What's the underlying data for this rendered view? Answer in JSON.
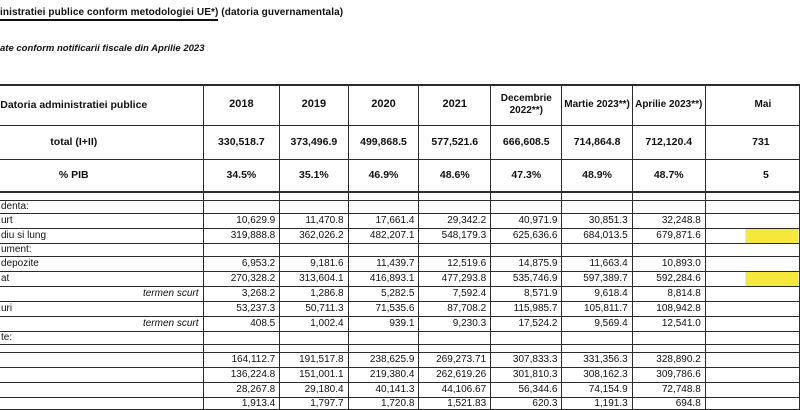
{
  "title": {
    "underlined": "inistratiei publice conform metodologiei UE*)",
    "rest": " (datoria guvernamentala)"
  },
  "subtitle": "ate conform notificarii fiscale din Aprilie 2023",
  "colors": {
    "highlight": "#f5e73c",
    "line": "#2b2b2b"
  },
  "table": {
    "header": {
      "label": "Datoria administratiei publice",
      "columns": [
        "2018",
        "2019",
        "2020",
        "2021",
        "Decembrie 2022**)",
        "Martie  2023**)",
        "Aprilie 2023**)",
        "Mai"
      ]
    },
    "total_row": {
      "label": "total (I+II)",
      "values": [
        "330,518.7",
        "373,496.9",
        "499,868.5",
        "577,521.6",
        "666,608.5",
        "714,864.8",
        "712,120.4",
        "731"
      ]
    },
    "pib_row": {
      "label": "% PIB",
      "values": [
        "34.5%",
        "35.1%",
        "46.9%",
        "48.6%",
        "47.3%",
        "48.9%",
        "48.7%",
        "5"
      ]
    },
    "rows": [
      {
        "label": "denta:",
        "label_style": "cut",
        "values": [
          "",
          "",
          "",
          "",
          "",
          "",
          ""
        ],
        "mai_highlight": false
      },
      {
        "label": "urt",
        "label_style": "cut",
        "values": [
          "10,629.9",
          "11,470.8",
          "17,661.4",
          "29,342.2",
          "40,971.9",
          "30,851.3",
          "32,248.8"
        ],
        "mai_highlight": false
      },
      {
        "label": "diu si lung",
        "label_style": "cut",
        "values": [
          "319,888.8",
          "362,026.2",
          "482,207.1",
          "548,179.3",
          "625,636.6",
          "684,013.5",
          "679,871.6"
        ],
        "mai_highlight": true
      },
      {
        "label": "ument:",
        "label_style": "cut",
        "values": [
          "",
          "",
          "",
          "",
          "",
          "",
          ""
        ],
        "mai_highlight": false
      },
      {
        "label": "depozite",
        "label_style": "cut",
        "values": [
          "6,953.2",
          "9,181.6",
          "11,439.7",
          "12,519.6",
          "14,875.9",
          "11,663.4",
          "10,893.0"
        ],
        "mai_highlight": false
      },
      {
        "label": "at",
        "label_style": "cut",
        "values": [
          "270,328.2",
          "313,604.1",
          "416,893.1",
          "477,293.8",
          "535,746.9",
          "597,389.7",
          "592,284.6"
        ],
        "mai_highlight": true
      },
      {
        "label": "termen scurt",
        "label_style": "italic",
        "values": [
          "3,268.2",
          "1,286.8",
          "5,282.5",
          "7,592.4",
          "8,571.9",
          "9,618.4",
          "8,814.8"
        ],
        "mai_highlight": false
      },
      {
        "label": "uri",
        "label_style": "cut",
        "values": [
          "53,237.3",
          "50,711.3",
          "71,535.6",
          "87,708.2",
          "115,985.7",
          "105,811.7",
          "108,942.8"
        ],
        "mai_highlight": false
      },
      {
        "label": "termen scurt",
        "label_style": "italic",
        "values": [
          "408.5",
          "1,002.4",
          "939.1",
          "9,230.3",
          "17,524.2",
          "9,569.4",
          "12,541.0"
        ],
        "mai_highlight": false
      },
      {
        "label": "te:",
        "label_style": "cut",
        "values": [
          "",
          "",
          "",
          "",
          "",
          "",
          ""
        ],
        "mai_highlight": false
      },
      {
        "label": "",
        "label_style": "none",
        "values": [
          "164,112.7",
          "191,517.8",
          "238,625.9",
          "269,273.71",
          "307,833.3",
          "331,356.3",
          "328,890.2"
        ],
        "mai_highlight": false
      },
      {
        "label": "",
        "label_style": "none",
        "values": [
          "136,224.8",
          "151,001.1",
          "219,380.4",
          "262,619.26",
          "301,810.3",
          "308,162.3",
          "309,786.6"
        ],
        "mai_highlight": false
      },
      {
        "label": "",
        "label_style": "none",
        "values": [
          "28,267.8",
          "29,180.4",
          "40,141.3",
          "44,106.67",
          "56,344.6",
          "74,154.9",
          "72,748.8"
        ],
        "mai_highlight": false
      },
      {
        "label": "",
        "label_style": "none",
        "values": [
          "1,913.4",
          "1,797.7",
          "1,720.8",
          "1,521.83",
          "620.3",
          "1,191.3",
          "694.8"
        ],
        "mai_highlight": false
      }
    ]
  }
}
